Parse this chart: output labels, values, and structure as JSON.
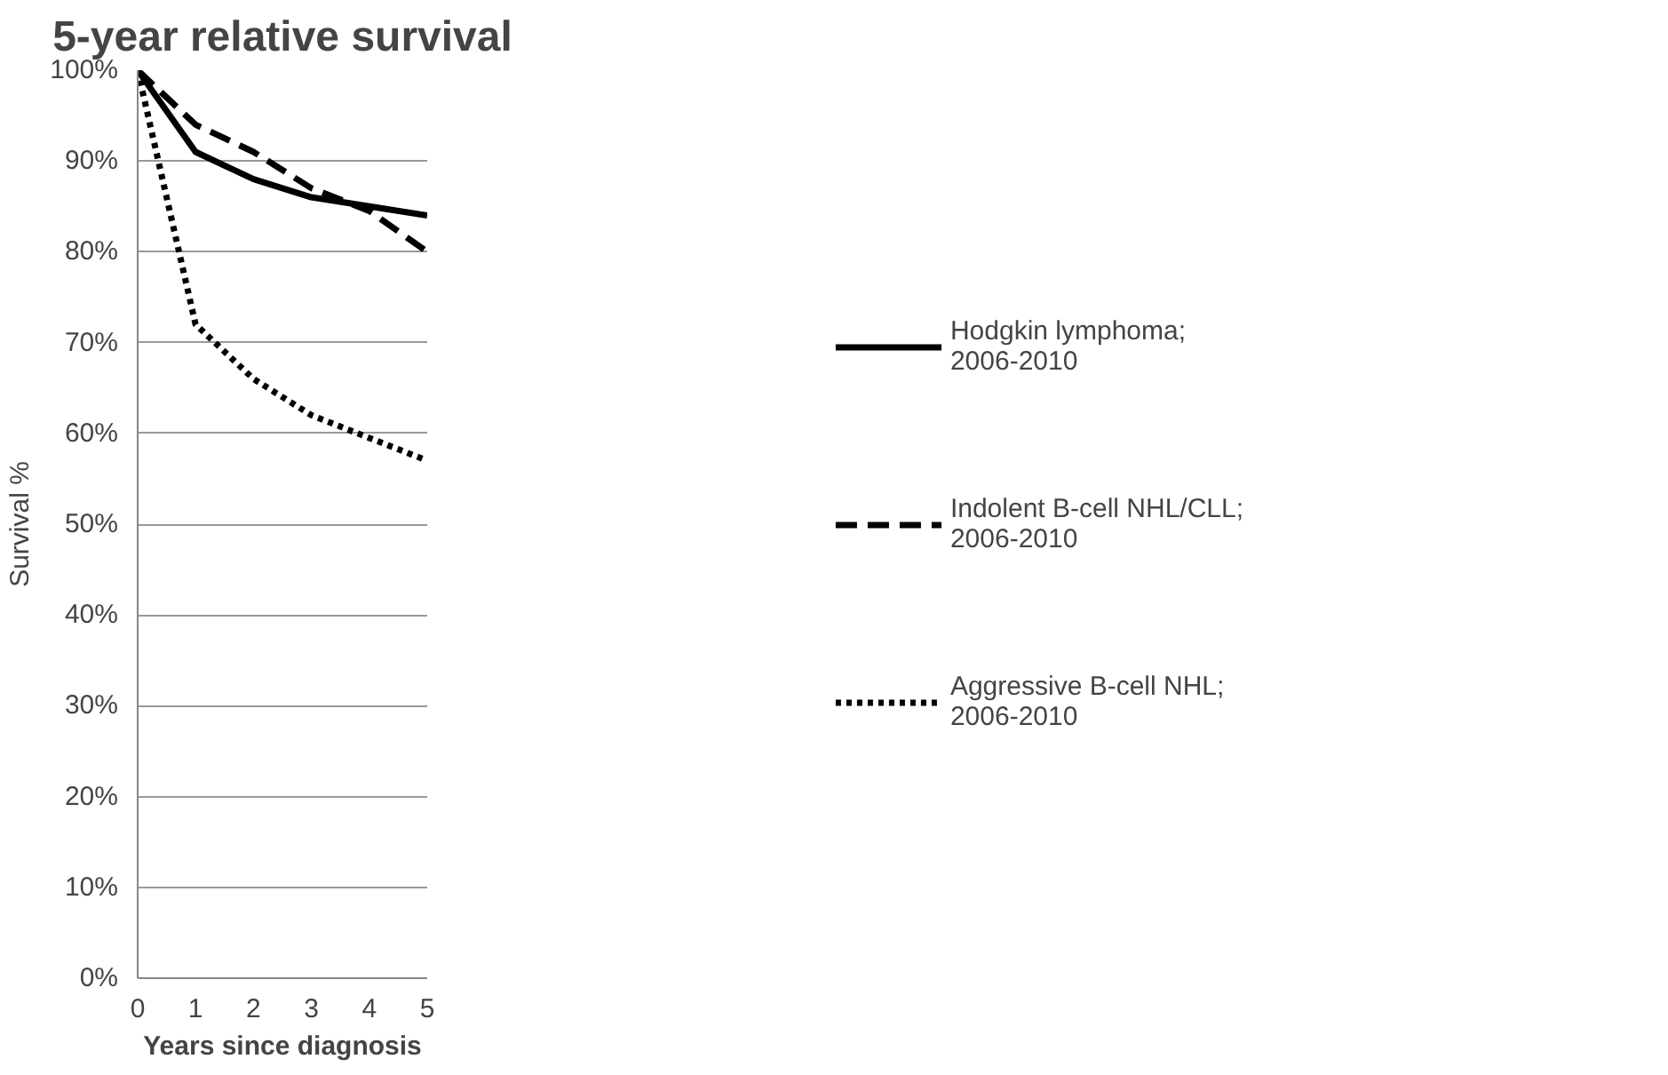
{
  "chart_data": {
    "type": "line",
    "title": "5-year relative survival",
    "xlabel": "Years since diagnosis",
    "ylabel": "Survival %",
    "x": [
      0,
      1,
      2,
      3,
      4,
      5
    ],
    "series": [
      {
        "name": "Hodgkin lymphoma; 2006-2010",
        "color": "#000000",
        "line_style": "solid",
        "values": [
          100,
          91,
          88,
          86,
          85,
          84
        ]
      },
      {
        "name": "Indolent B-cell NHL/CLL; 2006-2010",
        "color": "#000000",
        "line_style": "dashed",
        "values": [
          100,
          94,
          91,
          87,
          84.5,
          80
        ]
      },
      {
        "name": "Aggressive B-cell NHL; 2006-2010",
        "color": "#000000",
        "line_style": "dotted",
        "values": [
          100,
          72,
          66,
          62,
          59.5,
          57
        ]
      }
    ],
    "xlim": [
      0,
      5
    ],
    "xticks": [
      0,
      1,
      2,
      3,
      4,
      5
    ],
    "ylim": [
      0,
      100
    ],
    "yticks": [
      {
        "value": 0,
        "label": "0%"
      },
      {
        "value": 10,
        "label": "10%"
      },
      {
        "value": 20,
        "label": "20%"
      },
      {
        "value": 30,
        "label": "30%"
      },
      {
        "value": 40,
        "label": "40%"
      },
      {
        "value": 50,
        "label": "50%"
      },
      {
        "value": 60,
        "label": "60%"
      },
      {
        "value": 70,
        "label": "70%"
      },
      {
        "value": 80,
        "label": "80%"
      },
      {
        "value": 90,
        "label": "90%"
      },
      {
        "value": 100,
        "label": "100%"
      }
    ],
    "grid": "y",
    "legend": "right",
    "marker": "none"
  }
}
